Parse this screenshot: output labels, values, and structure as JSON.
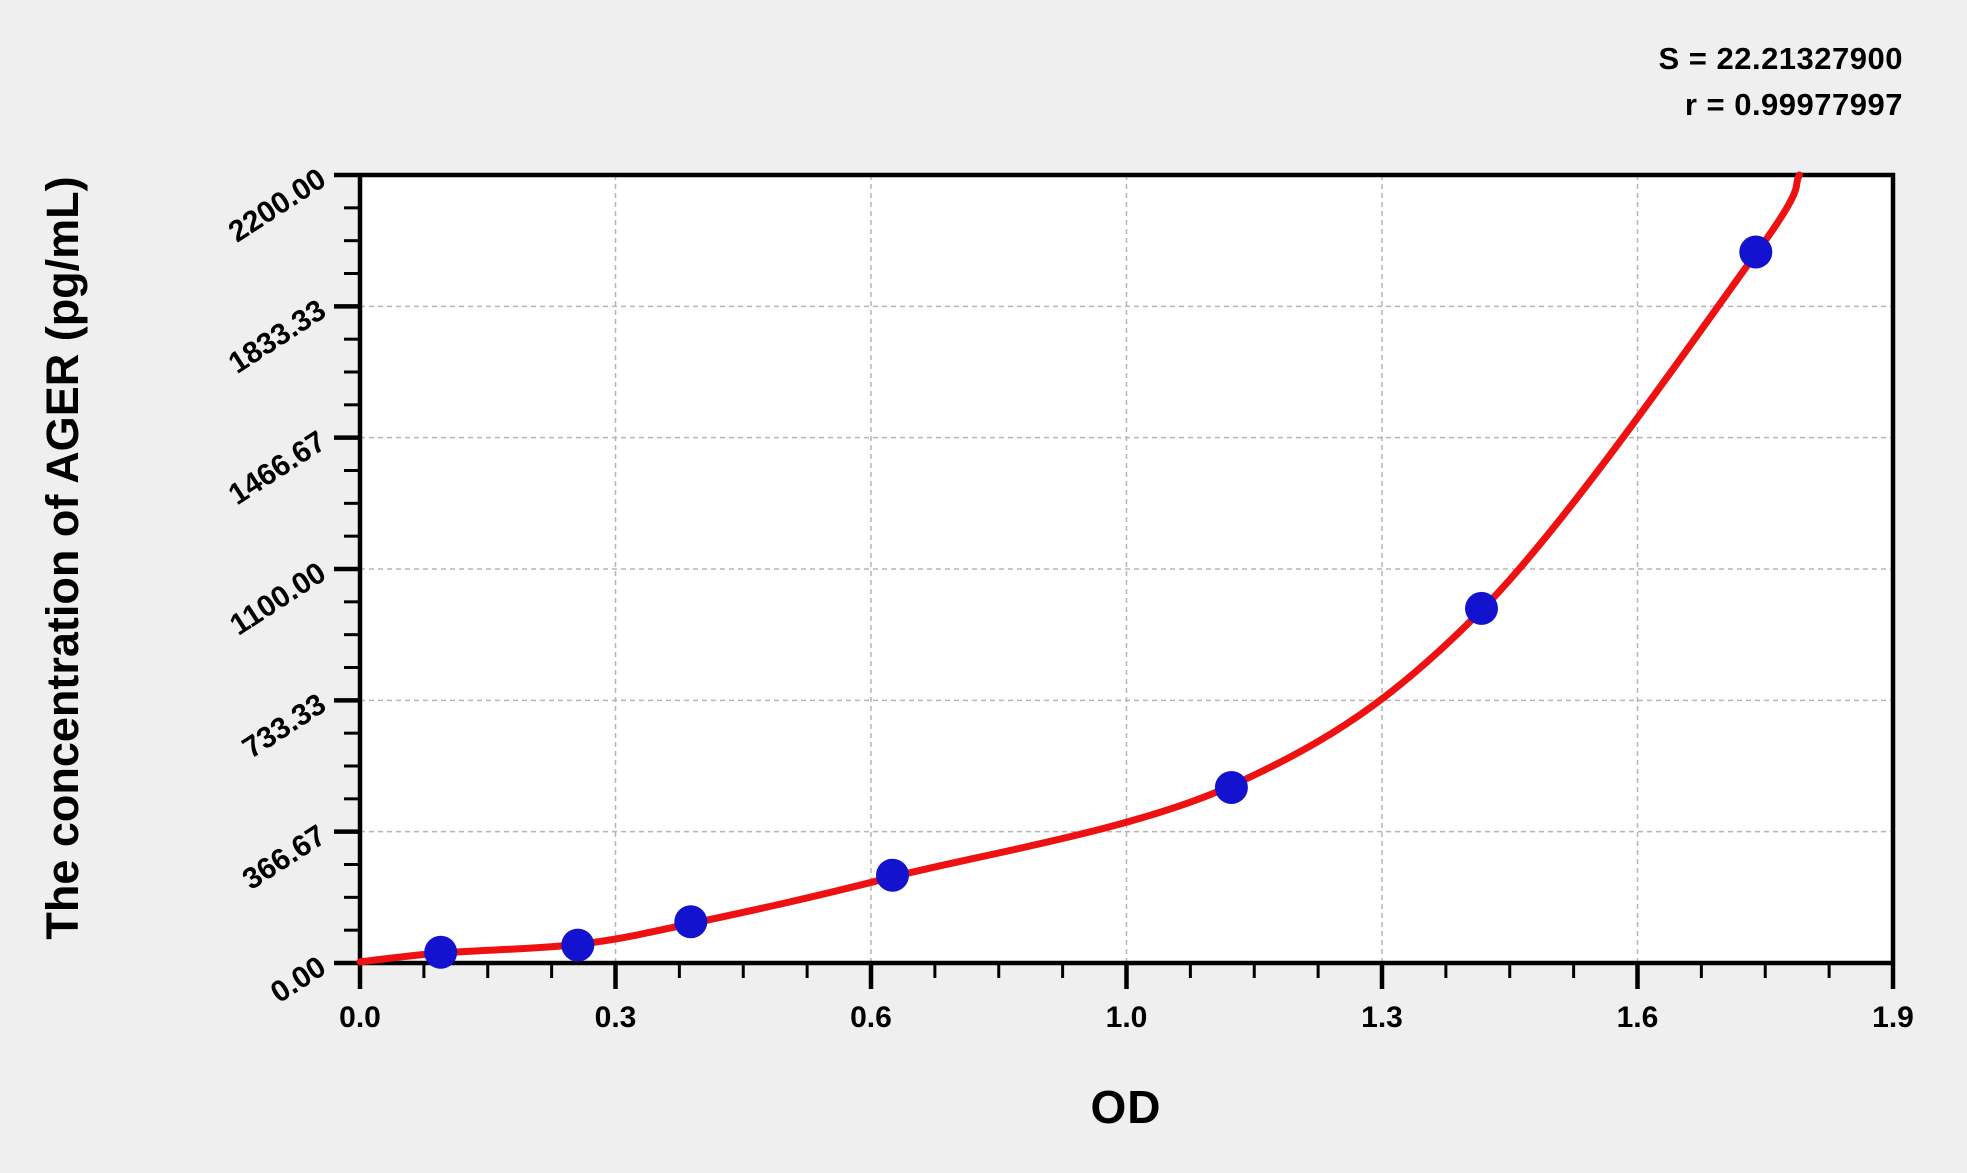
{
  "page": {
    "background": "#efefef",
    "plot_background": "#ffffff"
  },
  "annotation": {
    "s_line": "S = 22.21327900",
    "r_line": "r = 0.99977997"
  },
  "chart_data": {
    "type": "scatter",
    "title": "",
    "xlabel": "OD",
    "ylabel": "The concentration of AGER (pg/mL)",
    "xlim": [
      0,
      1.9
    ],
    "ylim": [
      0,
      2200
    ],
    "x_axis": {
      "tick_values": [
        0,
        0.31667,
        0.63333,
        0.95,
        1.26667,
        1.58333,
        1.9
      ],
      "tick_labels": [
        "0.0",
        "0.3",
        "0.6",
        "1.0",
        "1.3",
        "1.6",
        "1.9"
      ],
      "minor_divisions": 4
    },
    "y_axis": {
      "tick_values": [
        0,
        366.67,
        733.33,
        1100,
        1466.67,
        1833.33,
        2200
      ],
      "tick_labels": [
        "0.00",
        "366.67",
        "733.33",
        "1100.00",
        "1466.67",
        "1833.33",
        "2200.00"
      ],
      "minor_divisions": 4
    },
    "grid": {
      "style": "dashed",
      "color": "#b5b5b5",
      "on_major": true
    },
    "legend": "none",
    "stats": {
      "S": "22.21327900",
      "r": "0.99977997"
    },
    "series": [
      {
        "name": "standard-points",
        "type": "scatter",
        "marker": "circle",
        "color": "#1212cf",
        "points": [
          [
            0.1,
            30
          ],
          [
            0.27,
            50
          ],
          [
            0.41,
            115
          ],
          [
            0.66,
            245
          ],
          [
            1.08,
            490
          ],
          [
            1.39,
            990
          ],
          [
            1.73,
            1985
          ]
        ]
      },
      {
        "name": "fitted-curve",
        "type": "line",
        "color": "#ee1111",
        "points": [
          [
            0,
            3
          ],
          [
            0.1,
            28
          ],
          [
            0.27,
            52
          ],
          [
            0.41,
            110
          ],
          [
            0.66,
            240
          ],
          [
            1.08,
            495
          ],
          [
            1.39,
            985
          ],
          [
            1.73,
            1980
          ],
          [
            1.784,
            2200
          ]
        ]
      }
    ]
  }
}
